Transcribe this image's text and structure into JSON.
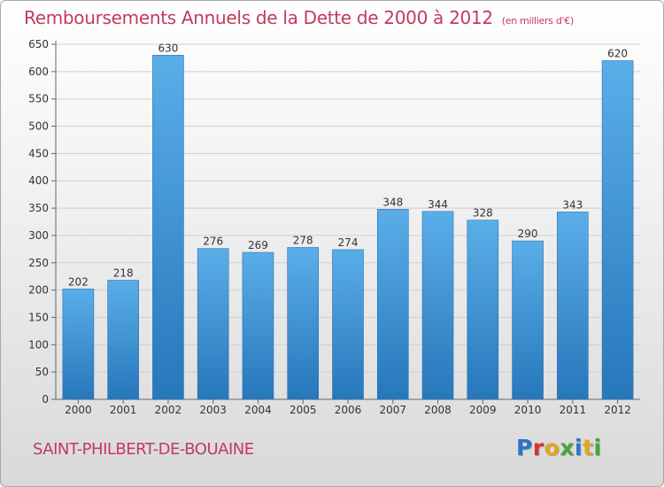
{
  "header": {
    "title": "Remboursements Annuels de la Dette de 2000 à 2012",
    "unit_note": "(en milliers d'€)"
  },
  "footer": {
    "city": "SAINT-PHILBERT-DE-BOUAINE",
    "brand": "Proxiti",
    "brand_letter_colors": [
      "#2e73c9",
      "#d9302c",
      "#e8a21c",
      "#4ba33c",
      "#2e73c9",
      "#e8a21c",
      "#4ba33c"
    ]
  },
  "colors": {
    "title": "#c23b5a",
    "bar_top": "#5aaee8",
    "bar_bottom": "#2777bb",
    "grid": "#d0d0d0",
    "axis_text": "#333333"
  },
  "chart_data": {
    "type": "bar",
    "title": "Remboursements Annuels de la Dette de 2000 à 2012",
    "xlabel": "",
    "ylabel": "",
    "categories": [
      "2000",
      "2001",
      "2002",
      "2003",
      "2004",
      "2005",
      "2006",
      "2007",
      "2008",
      "2009",
      "2010",
      "2011",
      "2012"
    ],
    "values": [
      202,
      218,
      630,
      276,
      269,
      278,
      274,
      348,
      344,
      328,
      290,
      343,
      620
    ],
    "ylim": [
      0,
      650
    ],
    "yticks": [
      0,
      50,
      100,
      150,
      200,
      250,
      300,
      350,
      400,
      450,
      500,
      550,
      600,
      650
    ],
    "grid": true,
    "data_labels": true,
    "legend": "none"
  }
}
